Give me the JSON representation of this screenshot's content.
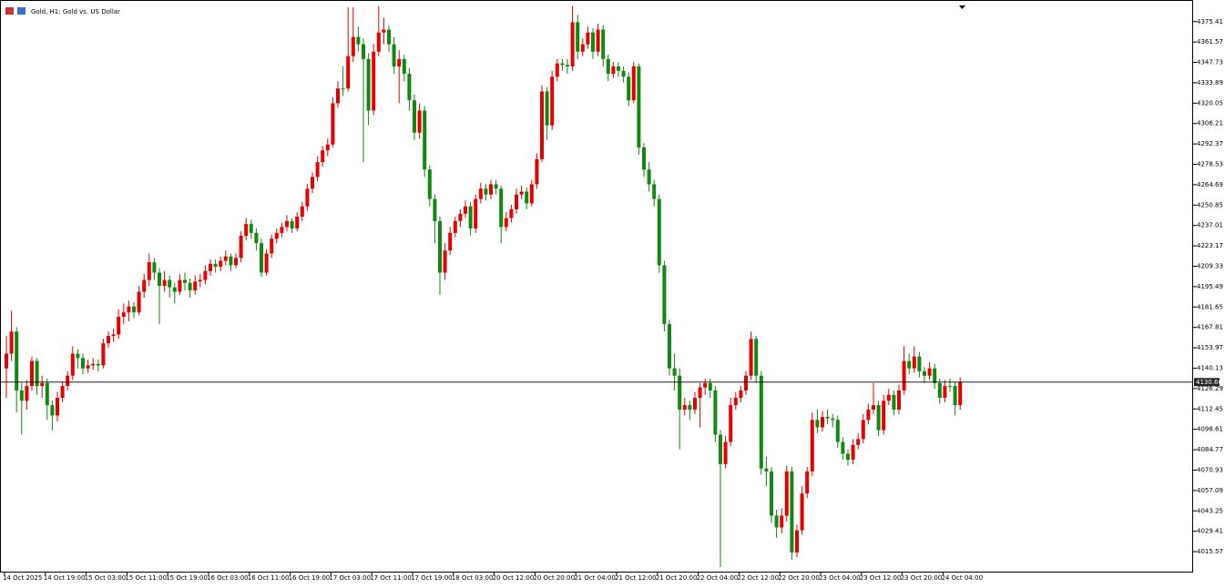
{
  "chart_data": {
    "type": "candlestick",
    "title": "Gold, H1:  Gold vs. US Dollar",
    "categories": [
      "14 Oct 2025",
      null,
      null,
      null,
      null,
      null,
      null,
      null,
      "14 Oct 19:00",
      null,
      null,
      null,
      null,
      null,
      null,
      null,
      "15 Oct 03:00",
      null,
      null,
      null,
      null,
      null,
      null,
      null,
      "15 Oct 11:00",
      null,
      null,
      null,
      null,
      null,
      null,
      null,
      "15 Oct 19:00",
      null,
      null,
      null,
      null,
      null,
      null,
      null,
      "16 Oct 03:00",
      null,
      null,
      null,
      null,
      null,
      null,
      null,
      "16 Oct 11:00",
      null,
      null,
      null,
      null,
      null,
      null,
      null,
      "16 Oct 19:00",
      null,
      null,
      null,
      null,
      null,
      null,
      null,
      "17 Oct 03:00",
      null,
      null,
      null,
      null,
      null,
      null,
      null,
      "17 Oct 11:00",
      null,
      null,
      null,
      null,
      null,
      null,
      null,
      "17 Oct 19:00",
      null,
      null,
      null,
      null,
      null,
      null,
      null,
      "18 Oct 03:00",
      null,
      null,
      null,
      null,
      null,
      null,
      null,
      "20 Oct 12:00",
      null,
      null,
      null,
      null,
      null,
      null,
      null,
      "20 Oct 20:00",
      null,
      null,
      null,
      null,
      null,
      null,
      null,
      "21 Oct 04:00",
      null,
      null,
      null,
      null,
      null,
      null,
      null,
      "21 Oct 12:00",
      null,
      null,
      null,
      null,
      null,
      null,
      null,
      "21 Oct 20:00",
      null,
      null,
      null,
      null,
      null,
      null,
      null,
      "22 Oct 04:00",
      null,
      null,
      null,
      null,
      null,
      null,
      null,
      "22 Oct 12:00",
      null,
      null,
      null,
      null,
      null,
      null,
      null,
      "22 Oct 20:00",
      null,
      null,
      null,
      null,
      null,
      null,
      null,
      "23 Oct 04:00",
      null,
      null,
      null,
      null,
      null,
      null,
      null,
      "23 Oct 12:00",
      null,
      null,
      null,
      null,
      null,
      null,
      null,
      "23 Oct 20:00",
      null,
      null,
      null,
      null,
      null,
      null,
      null,
      "24 Oct 04:00",
      null,
      null,
      null
    ],
    "ohlc": [
      [
        4140,
        4162,
        4120,
        4150
      ],
      [
        4150,
        4179,
        4145,
        4165
      ],
      [
        4165,
        4168,
        4110,
        4125
      ],
      [
        4125,
        4130,
        4095,
        4118
      ],
      [
        4118,
        4132,
        4112,
        4128
      ],
      [
        4128,
        4148,
        4125,
        4145
      ],
      [
        4145,
        4147,
        4122,
        4128
      ],
      [
        4128,
        4135,
        4120,
        4130
      ],
      [
        4130,
        4133,
        4105,
        4115
      ],
      [
        4115,
        4118,
        4098,
        4108
      ],
      [
        4108,
        4124,
        4104,
        4120
      ],
      [
        4120,
        4131,
        4117,
        4128
      ],
      [
        4128,
        4138,
        4125,
        4135
      ],
      [
        4135,
        4155,
        4132,
        4150
      ],
      [
        4150,
        4153,
        4140,
        4147
      ],
      [
        4147,
        4150,
        4136,
        4140
      ],
      [
        4140,
        4146,
        4137,
        4142
      ],
      [
        4142,
        4147,
        4139,
        4143
      ],
      [
        4143,
        4146,
        4138,
        4142
      ],
      [
        4142,
        4160,
        4140,
        4157
      ],
      [
        4157,
        4165,
        4154,
        4162
      ],
      [
        4162,
        4167,
        4158,
        4163
      ],
      [
        4163,
        4180,
        4160,
        4175
      ],
      [
        4175,
        4184,
        4170,
        4178
      ],
      [
        4178,
        4186,
        4172,
        4182
      ],
      [
        4182,
        4185,
        4174,
        4178
      ],
      [
        4178,
        4196,
        4176,
        4192
      ],
      [
        4192,
        4204,
        4188,
        4200
      ],
      [
        4200,
        4218,
        4196,
        4212
      ],
      [
        4212,
        4215,
        4200,
        4205
      ],
      [
        4205,
        4208,
        4170,
        4196
      ],
      [
        4196,
        4206,
        4192,
        4200
      ],
      [
        4200,
        4203,
        4188,
        4195
      ],
      [
        4195,
        4198,
        4184,
        4192
      ],
      [
        4192,
        4204,
        4190,
        4200
      ],
      [
        4200,
        4205,
        4193,
        4198
      ],
      [
        4198,
        4201,
        4188,
        4193
      ],
      [
        4193,
        4203,
        4190,
        4199
      ],
      [
        4199,
        4204,
        4195,
        4200
      ],
      [
        4200,
        4210,
        4197,
        4206
      ],
      [
        4206,
        4214,
        4203,
        4211
      ],
      [
        4211,
        4214,
        4205,
        4209
      ],
      [
        4209,
        4216,
        4206,
        4213
      ],
      [
        4213,
        4220,
        4210,
        4216
      ],
      [
        4216,
        4218,
        4206,
        4210
      ],
      [
        4210,
        4218,
        4208,
        4215
      ],
      [
        4215,
        4233,
        4212,
        4230
      ],
      [
        4230,
        4242,
        4227,
        4238
      ],
      [
        4238,
        4241,
        4228,
        4232
      ],
      [
        4232,
        4235,
        4220,
        4225
      ],
      [
        4225,
        4228,
        4202,
        4205
      ],
      [
        4205,
        4221,
        4203,
        4218
      ],
      [
        4218,
        4231,
        4215,
        4228
      ],
      [
        4228,
        4235,
        4225,
        4232
      ],
      [
        4232,
        4239,
        4229,
        4236
      ],
      [
        4236,
        4244,
        4233,
        4240
      ],
      [
        4240,
        4242,
        4232,
        4235
      ],
      [
        4235,
        4246,
        4233,
        4243
      ],
      [
        4243,
        4253,
        4240,
        4250
      ],
      [
        4250,
        4265,
        4247,
        4262
      ],
      [
        4262,
        4273,
        4259,
        4270
      ],
      [
        4270,
        4284,
        4267,
        4280
      ],
      [
        4280,
        4291,
        4277,
        4288
      ],
      [
        4288,
        4296,
        4284,
        4292
      ],
      [
        4292,
        4324,
        4290,
        4320
      ],
      [
        4320,
        4335,
        4317,
        4330
      ],
      [
        4330,
        4345,
        4325,
        4330
      ],
      [
        4330,
        4385,
        4328,
        4352
      ],
      [
        4352,
        4385,
        4348,
        4365
      ],
      [
        4365,
        4372,
        4355,
        4360
      ],
      [
        4360,
        4364,
        4280,
        4350
      ],
      [
        4350,
        4354,
        4305,
        4315
      ],
      [
        4315,
        4360,
        4312,
        4355
      ],
      [
        4355,
        4386,
        4352,
        4368
      ],
      [
        4368,
        4378,
        4360,
        4370
      ],
      [
        4370,
        4373,
        4355,
        4360
      ],
      [
        4360,
        4365,
        4340,
        4345
      ],
      [
        4345,
        4356,
        4320,
        4350
      ],
      [
        4350,
        4353,
        4335,
        4340
      ],
      [
        4340,
        4344,
        4315,
        4322
      ],
      [
        4322,
        4326,
        4295,
        4300
      ],
      [
        4300,
        4320,
        4296,
        4315
      ],
      [
        4315,
        4318,
        4270,
        4275
      ],
      [
        4275,
        4278,
        4250,
        4255
      ],
      [
        4255,
        4258,
        4225,
        4240
      ],
      [
        4240,
        4243,
        4190,
        4205
      ],
      [
        4205,
        4225,
        4200,
        4220
      ],
      [
        4220,
        4236,
        4217,
        4232
      ],
      [
        4232,
        4243,
        4229,
        4240
      ],
      [
        4240,
        4248,
        4236,
        4245
      ],
      [
        4245,
        4254,
        4242,
        4250
      ],
      [
        4250,
        4253,
        4230,
        4235
      ],
      [
        4235,
        4258,
        4232,
        4255
      ],
      [
        4255,
        4266,
        4252,
        4262
      ],
      [
        4262,
        4265,
        4254,
        4258
      ],
      [
        4258,
        4268,
        4255,
        4265
      ],
      [
        4265,
        4268,
        4258,
        4262
      ],
      [
        4262,
        4264,
        4225,
        4236
      ],
      [
        4236,
        4246,
        4233,
        4242
      ],
      [
        4242,
        4251,
        4239,
        4248
      ],
      [
        4248,
        4262,
        4245,
        4258
      ],
      [
        4258,
        4264,
        4255,
        4260
      ],
      [
        4260,
        4263,
        4248,
        4252
      ],
      [
        4252,
        4268,
        4250,
        4265
      ],
      [
        4265,
        4286,
        4262,
        4282
      ],
      [
        4282,
        4332,
        4280,
        4328
      ],
      [
        4328,
        4331,
        4295,
        4305
      ],
      [
        4305,
        4342,
        4302,
        4338
      ],
      [
        4338,
        4350,
        4335,
        4347
      ],
      [
        4347,
        4350,
        4342,
        4346
      ],
      [
        4346,
        4350,
        4340,
        4345
      ],
      [
        4345,
        4386,
        4342,
        4375
      ],
      [
        4375,
        4380,
        4350,
        4355
      ],
      [
        4355,
        4364,
        4352,
        4360
      ],
      [
        4360,
        4372,
        4357,
        4368
      ],
      [
        4368,
        4371,
        4350,
        4355
      ],
      [
        4355,
        4374,
        4352,
        4370
      ],
      [
        4370,
        4373,
        4345,
        4350
      ],
      [
        4350,
        4353,
        4335,
        4340
      ],
      [
        4340,
        4348,
        4337,
        4345
      ],
      [
        4345,
        4348,
        4338,
        4342
      ],
      [
        4342,
        4345,
        4334,
        4338
      ],
      [
        4338,
        4341,
        4318,
        4322
      ],
      [
        4322,
        4348,
        4320,
        4345
      ],
      [
        4345,
        4347,
        4285,
        4290
      ],
      [
        4290,
        4293,
        4270,
        4275
      ],
      [
        4275,
        4280,
        4260,
        4265
      ],
      [
        4265,
        4268,
        4250,
        4255
      ],
      [
        4255,
        4258,
        4205,
        4210
      ],
      [
        4210,
        4213,
        4165,
        4170
      ],
      [
        4170,
        4173,
        4135,
        4140
      ],
      [
        4140,
        4150,
        4125,
        4135
      ],
      [
        4135,
        4140,
        4085,
        4112
      ],
      [
        4112,
        4120,
        4108,
        4115
      ],
      [
        4115,
        4118,
        4105,
        4112
      ],
      [
        4112,
        4124,
        4109,
        4120
      ],
      [
        4120,
        4130,
        4100,
        4127
      ],
      [
        4127,
        4133,
        4122,
        4130
      ],
      [
        4130,
        4133,
        4120,
        4125
      ],
      [
        4125,
        4128,
        4090,
        4095
      ],
      [
        4095,
        4098,
        4005,
        4075
      ],
      [
        4075,
        4094,
        4072,
        4090
      ],
      [
        4090,
        4120,
        4087,
        4115
      ],
      [
        4115,
        4124,
        4112,
        4120
      ],
      [
        4120,
        4128,
        4117,
        4125
      ],
      [
        4125,
        4138,
        4122,
        4135
      ],
      [
        4135,
        4165,
        4132,
        4160
      ],
      [
        4160,
        4162,
        4130,
        4135
      ],
      [
        4135,
        4138,
        4068,
        4072
      ],
      [
        4072,
        4080,
        4060,
        4070
      ],
      [
        4070,
        4073,
        4035,
        4040
      ],
      [
        4040,
        4044,
        4025,
        4032
      ],
      [
        4032,
        4045,
        4028,
        4040
      ],
      [
        4040,
        4074,
        4036,
        4070
      ],
      [
        4070,
        4073,
        4010,
        4015
      ],
      [
        4015,
        4034,
        4012,
        4030
      ],
      [
        4030,
        4060,
        4027,
        4055
      ],
      [
        4055,
        4073,
        4052,
        4070
      ],
      [
        4070,
        4110,
        4067,
        4105
      ],
      [
        4105,
        4112,
        4096,
        4100
      ],
      [
        4100,
        4111,
        4097,
        4107
      ],
      [
        4107,
        4112,
        4102,
        4106
      ],
      [
        4106,
        4109,
        4100,
        4105
      ],
      [
        4105,
        4108,
        4086,
        4090
      ],
      [
        4090,
        4093,
        4078,
        4082
      ],
      [
        4082,
        4085,
        4074,
        4078
      ],
      [
        4078,
        4092,
        4075,
        4088
      ],
      [
        4088,
        4096,
        4085,
        4092
      ],
      [
        4092,
        4109,
        4089,
        4105
      ],
      [
        4105,
        4116,
        4102,
        4112
      ],
      [
        4112,
        4130,
        4109,
        4115
      ],
      [
        4115,
        4118,
        4094,
        4098
      ],
      [
        4098,
        4122,
        4095,
        4118
      ],
      [
        4118,
        4126,
        4115,
        4122
      ],
      [
        4122,
        4125,
        4108,
        4112
      ],
      [
        4112,
        4129,
        4109,
        4125
      ],
      [
        4125,
        4155,
        4122,
        4145
      ],
      [
        4145,
        4150,
        4136,
        4140
      ],
      [
        4140,
        4155,
        4137,
        4148
      ],
      [
        4148,
        4151,
        4134,
        4138
      ],
      [
        4138,
        4141,
        4130,
        4135
      ],
      [
        4135,
        4144,
        4132,
        4140
      ],
      [
        4140,
        4143,
        4126,
        4130
      ],
      [
        4130,
        4133,
        4116,
        4120
      ],
      [
        4120,
        4132,
        4117,
        4128
      ],
      [
        4128,
        4133,
        4124,
        4128
      ],
      [
        4128,
        4131,
        4108,
        4115
      ],
      [
        4115,
        4134,
        4112,
        4130.66
      ]
    ],
    "up_color": "#e60000",
    "down_color": "#118811",
    "ylim": [
      4002,
      4387
    ],
    "yticks": [
      4375.41,
      4361.57,
      4347.73,
      4333.89,
      4320.05,
      4306.21,
      4292.37,
      4278.53,
      4264.69,
      4250.85,
      4237.01,
      4223.17,
      4209.33,
      4195.49,
      4181.65,
      4167.81,
      4153.97,
      4140.13,
      4126.29,
      4112.45,
      4098.61,
      4084.77,
      4070.93,
      4057.09,
      4043.25,
      4029.41,
      4015.57
    ],
    "last_price": 4130.66
  }
}
